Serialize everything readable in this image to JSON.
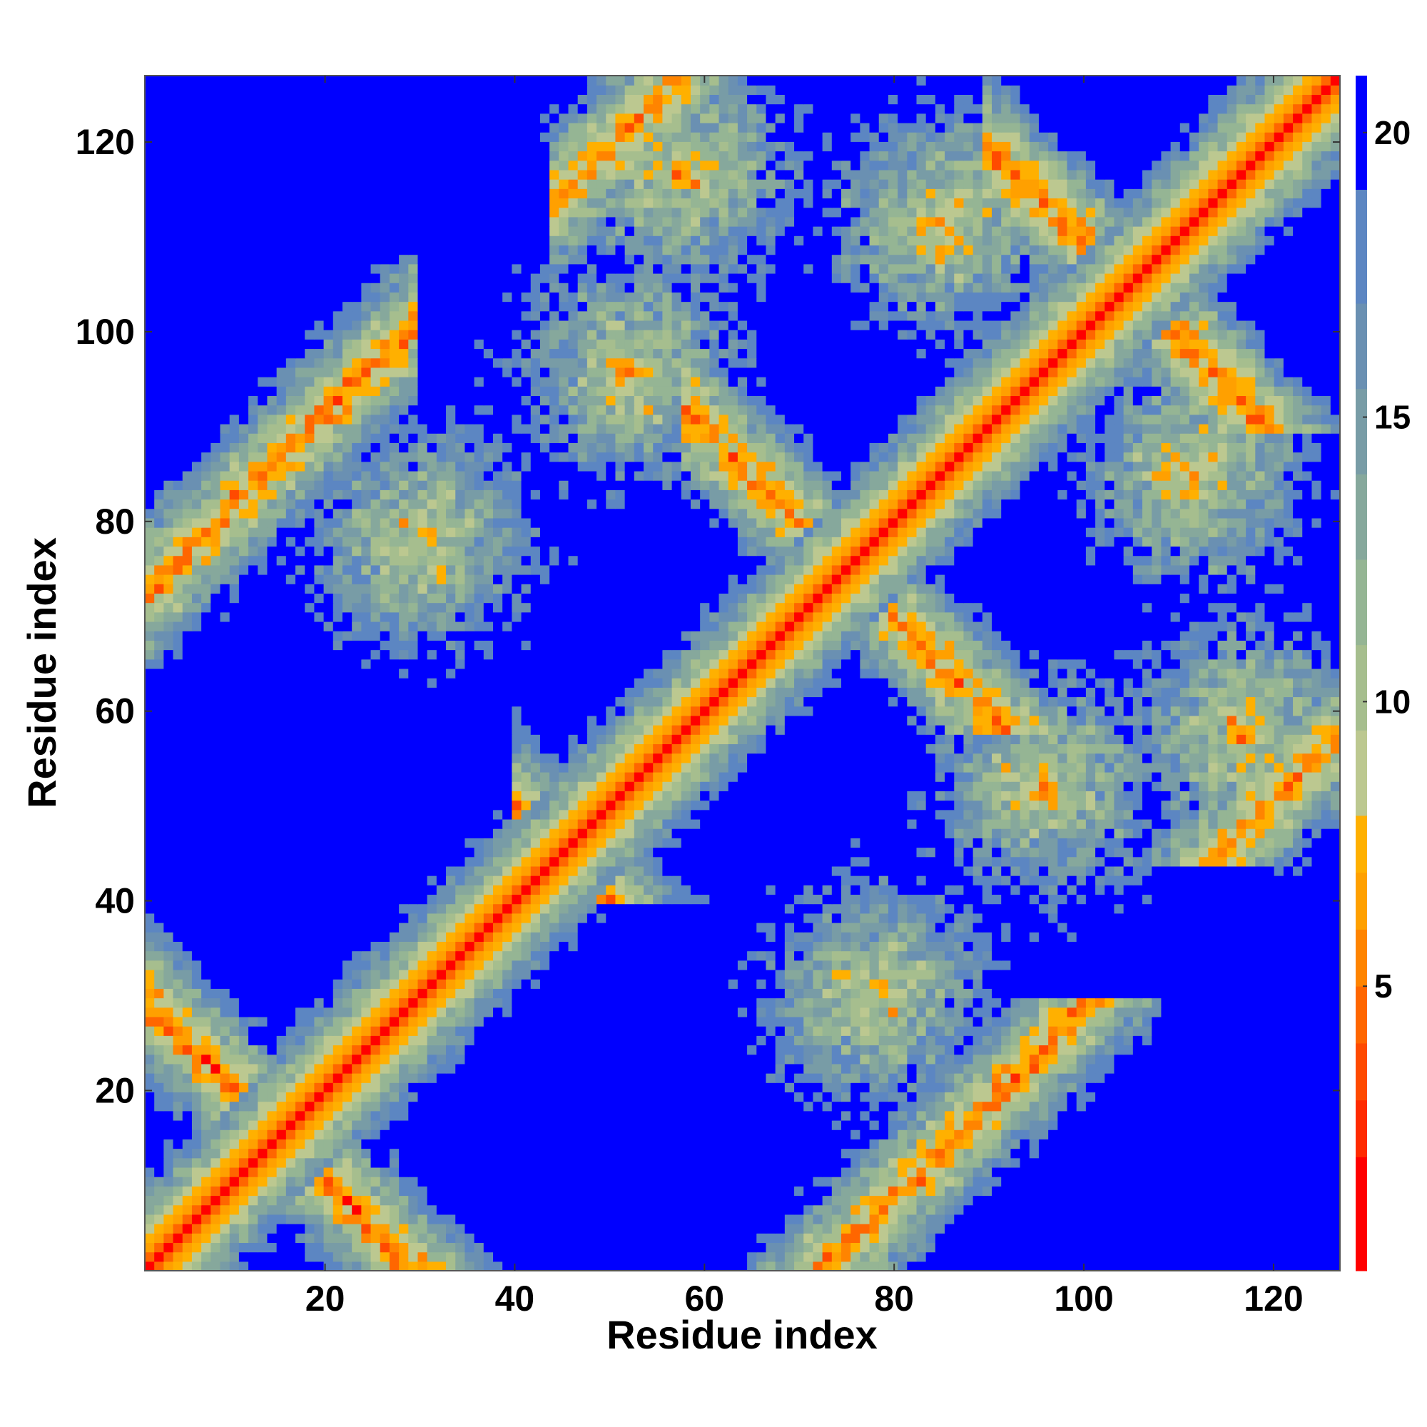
{
  "chart_data": {
    "type": "heatmap",
    "title": "",
    "xlabel": "Residue index",
    "ylabel": "Residue index",
    "n_residues": 127,
    "xlim": [
      1,
      127
    ],
    "ylim": [
      1,
      127
    ],
    "x_ticks": [
      20,
      40,
      60,
      80,
      100,
      120
    ],
    "y_ticks": [
      20,
      40,
      60,
      80,
      100,
      120
    ],
    "x_tick_labels": [
      "20",
      "40",
      "60",
      "80",
      "100",
      "120"
    ],
    "y_tick_labels": [
      "20",
      "40",
      "60",
      "80",
      "100",
      "120"
    ],
    "value_range": [
      0,
      21
    ],
    "overflow_color": "#0000ff",
    "colorbar": {
      "ticks": [
        5,
        10,
        15,
        20
      ],
      "tick_labels": [
        "5",
        "10",
        "15",
        "20"
      ],
      "levels": [
        {
          "max": 2,
          "color": "#ff0000"
        },
        {
          "max": 3,
          "color": "#ff2a00"
        },
        {
          "max": 4,
          "color": "#ff4a00"
        },
        {
          "max": 5,
          "color": "#ff6600"
        },
        {
          "max": 6,
          "color": "#ff8400"
        },
        {
          "max": 7,
          "color": "#ffa000"
        },
        {
          "max": 8,
          "color": "#ffb000"
        },
        {
          "max": 9.5,
          "color": "#bcc890"
        },
        {
          "max": 11,
          "color": "#a6be8e"
        },
        {
          "max": 12.5,
          "color": "#95b594"
        },
        {
          "max": 14,
          "color": "#86a89c"
        },
        {
          "max": 15.5,
          "color": "#789ca6"
        },
        {
          "max": 17,
          "color": "#6a90b2"
        },
        {
          "max": 19,
          "color": "#5c86c2"
        },
        {
          "max": 21,
          "color": "#0000ff"
        }
      ]
    },
    "description_of_pattern": [
      {
        "kind": "diagonal",
        "note": "distances near 0 along i=j, widening band up to ~21"
      },
      {
        "kind": "antiparallel",
        "i_plus_j": 30,
        "range": [
          1,
          28
        ]
      },
      {
        "kind": "antiparallel",
        "i_plus_j": 90,
        "range": [
          44,
          84
        ]
      },
      {
        "kind": "antiparallel",
        "i_plus_j": 150,
        "range": [
          62,
          87
        ]
      },
      {
        "kind": "antiparallel",
        "i_plus_j": 210,
        "range": [
          94,
          115
        ]
      },
      {
        "kind": "parallel",
        "offset": 72,
        "range": [
          1,
          26
        ]
      },
      {
        "kind": "parallel",
        "offset": 70,
        "range": [
          47,
          62
        ]
      },
      {
        "kind": "cluster",
        "center": [
          30,
          78
        ]
      },
      {
        "kind": "cluster",
        "center": [
          85,
          112
        ]
      },
      {
        "kind": "cluster",
        "center": [
          58,
          117
        ]
      }
    ]
  }
}
